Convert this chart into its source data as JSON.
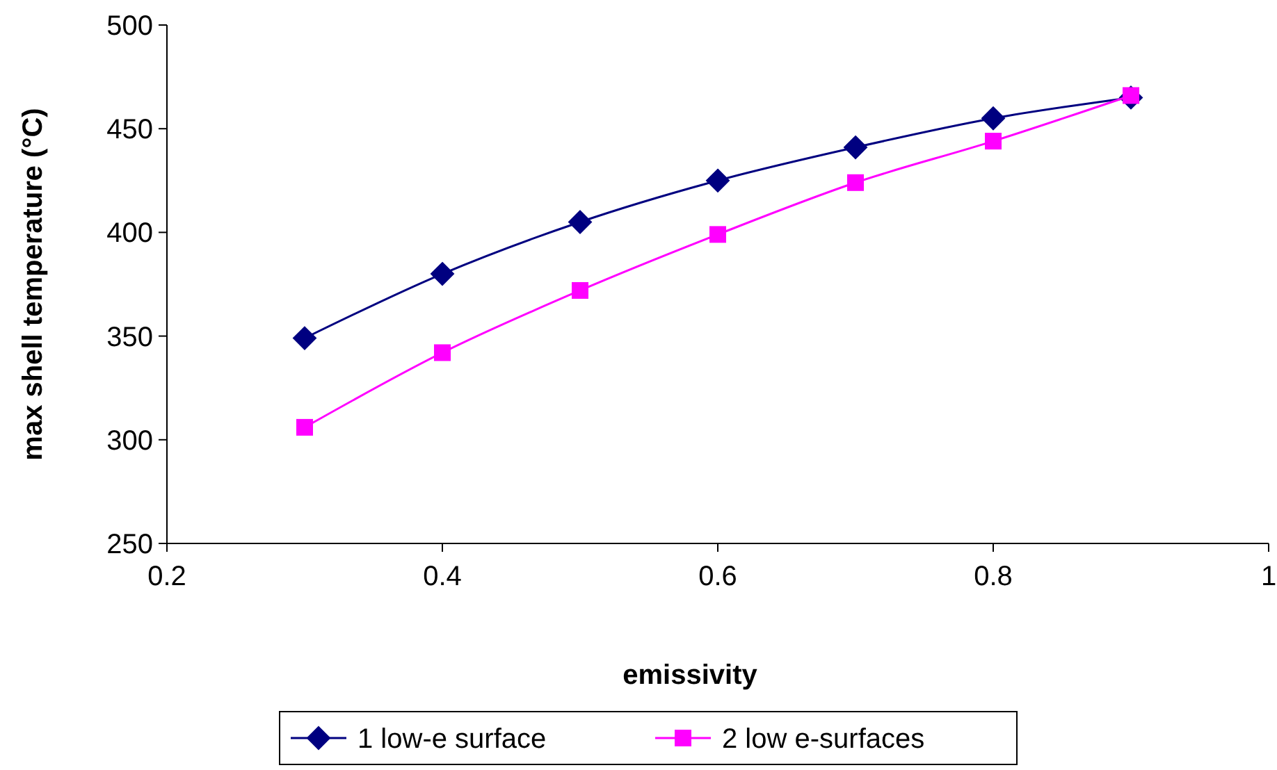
{
  "chart_data": {
    "type": "line",
    "xlabel": "emissivity",
    "ylabel": "max shell temperature (°C)",
    "x": [
      0.3,
      0.4,
      0.5,
      0.6,
      0.7,
      0.8,
      0.9
    ],
    "xlim": [
      0.2,
      1
    ],
    "xticks": [
      0.2,
      0.4,
      0.6,
      0.8,
      1
    ],
    "ylim": [
      250,
      500
    ],
    "yticks": [
      250,
      300,
      350,
      400,
      450,
      500
    ],
    "grid": false,
    "legend": "bottom",
    "series": [
      {
        "name": "1 low-e surface",
        "color": "#000080",
        "marker": "diamond",
        "values": [
          349,
          380,
          405,
          425,
          441,
          455,
          465
        ]
      },
      {
        "name": "2 low e-surfaces",
        "color": "#ff00ff",
        "marker": "square",
        "values": [
          306,
          342,
          372,
          399,
          424,
          444,
          466
        ]
      }
    ]
  }
}
